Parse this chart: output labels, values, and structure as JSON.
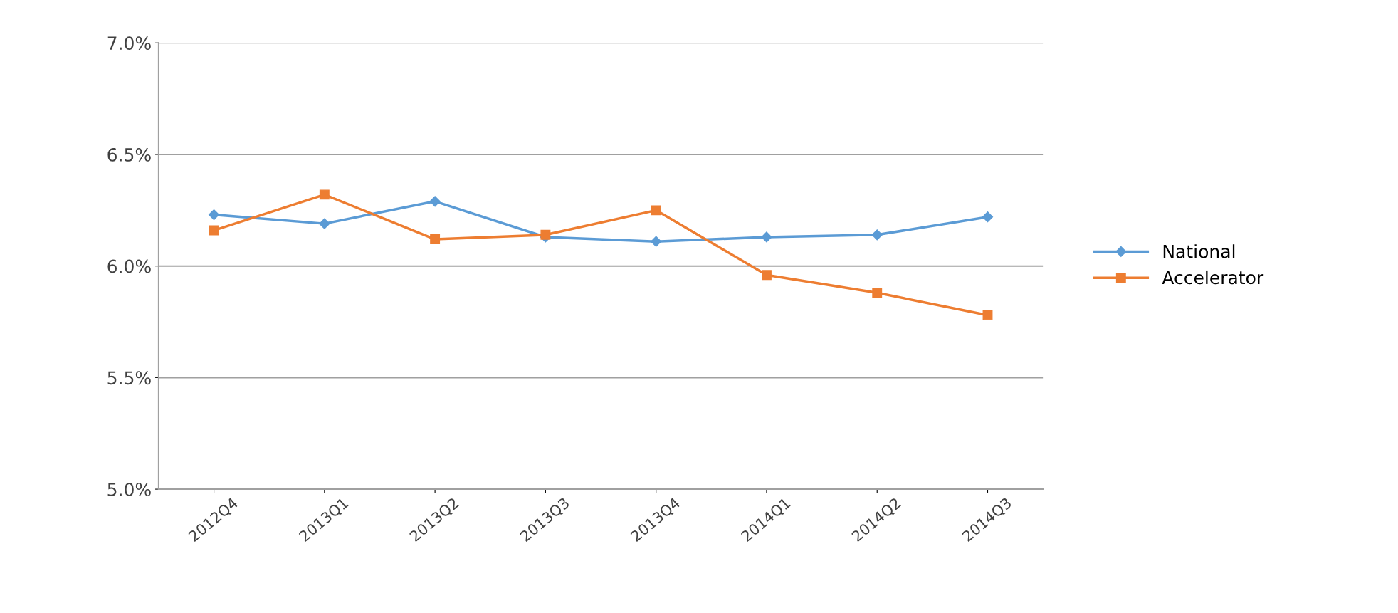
{
  "chart_data": {
    "type": "line",
    "categories": [
      "2012Q4",
      "2013Q1",
      "2013Q2",
      "2013Q3",
      "2013Q4",
      "2014Q1",
      "2014Q2",
      "2014Q3"
    ],
    "series": [
      {
        "name": "National",
        "color": "#5b9bd5",
        "marker": "diamond",
        "values": [
          6.23,
          6.19,
          6.29,
          6.13,
          6.11,
          6.13,
          6.14,
          6.22
        ]
      },
      {
        "name": "Accelerator",
        "color": "#ed7d31",
        "marker": "square",
        "values": [
          6.16,
          6.32,
          6.12,
          6.14,
          6.25,
          5.96,
          5.88,
          5.78
        ]
      }
    ],
    "ylim": [
      5.0,
      7.0
    ],
    "yticks": [
      {
        "value": 5.0,
        "label": "5.0%"
      },
      {
        "value": 5.5,
        "label": "5.5%"
      },
      {
        "value": 6.0,
        "label": "6.0%"
      },
      {
        "value": 6.5,
        "label": "6.5%"
      },
      {
        "value": 7.0,
        "label": "7.0%"
      }
    ],
    "grid": "y",
    "legend": "right"
  }
}
